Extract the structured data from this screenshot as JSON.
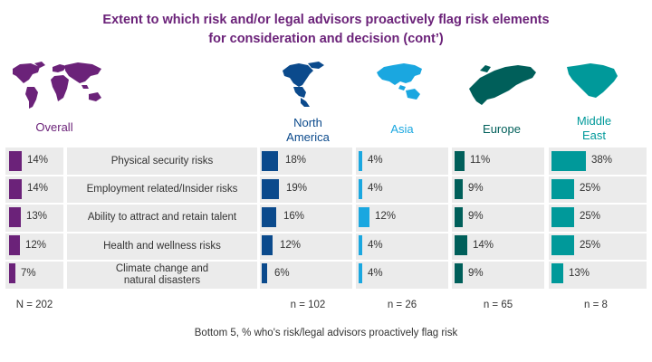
{
  "title_line1": "Extent to which risk and/or legal advisors proactively flag risk elements",
  "title_line2": "for consideration and decision (cont’)",
  "footnote": "Bottom 5, % who's risk/legal advisors proactively flag risk",
  "colors": {
    "title": "#6b2279",
    "overall": "#6b2279",
    "north_america": "#0b4a8c",
    "asia": "#1aa7e0",
    "europe": "#005f5a",
    "middle_east": "#00999a",
    "panel": "#ebebeb"
  },
  "categories": [
    "Physical security risks",
    "Employment related/Insider risks",
    "Ability to attract and retain talent",
    "Health and wellness risks",
    "Climate change and natural disasters"
  ],
  "chart_data": {
    "type": "bar",
    "orientation": "horizontal",
    "title": "Extent to which risk and/or legal advisors proactively flag risk elements for consideration and decision (cont’)",
    "subtitle": "Bottom 5, % who's risk/legal advisors proactively flag risk",
    "categories": [
      "Physical security risks",
      "Employment related/Insider risks",
      "Ability to attract and retain talent",
      "Health and wellness risks",
      "Climate change and natural disasters"
    ],
    "unit": "%",
    "xlim": [
      0,
      40
    ],
    "series": [
      {
        "key": "overall",
        "name": "Overall",
        "n": "N = 202",
        "values": [
          14,
          14,
          13,
          12,
          7
        ],
        "labels": [
          "14%",
          "14%",
          "13%",
          "12%",
          "7%"
        ]
      },
      {
        "key": "north_america",
        "name": "North America",
        "n": "n = 102",
        "values": [
          18,
          19,
          16,
          12,
          6
        ],
        "labels": [
          "18%",
          "19%",
          "16%",
          "12%",
          "6%"
        ]
      },
      {
        "key": "asia",
        "name": "Asia",
        "n": "n = 26",
        "values": [
          4,
          4,
          12,
          4,
          4
        ],
        "labels": [
          "4%",
          "4%",
          "12%",
          "4%",
          "4%"
        ]
      },
      {
        "key": "europe",
        "name": "Europe",
        "n": "n = 65",
        "values": [
          11,
          9,
          9,
          14,
          9
        ],
        "labels": [
          "11%",
          "9%",
          "9%",
          "14%",
          "9%"
        ]
      },
      {
        "key": "middle_east",
        "name": "Middle East",
        "n": "n = 8",
        "values": [
          38,
          25,
          25,
          25,
          13
        ],
        "labels": [
          "38%",
          "25%",
          "25%",
          "25%",
          "13%"
        ]
      }
    ]
  },
  "columns": {
    "overall": {
      "label": "Overall",
      "n": "N = 202",
      "map_icon": "world-map-icon"
    },
    "north_america": {
      "label_line1": "North",
      "label_line2": "America",
      "n": "n = 102",
      "map_icon": "north-america-map-icon"
    },
    "asia": {
      "label": "Asia",
      "n": "n = 26",
      "map_icon": "asia-map-icon"
    },
    "europe": {
      "label": "Europe",
      "n": "n = 65",
      "map_icon": "europe-map-icon"
    },
    "middle_east": {
      "label_line1": "Middle",
      "label_line2": "East",
      "n": "n = 8",
      "map_icon": "middle-east-map-icon"
    }
  }
}
